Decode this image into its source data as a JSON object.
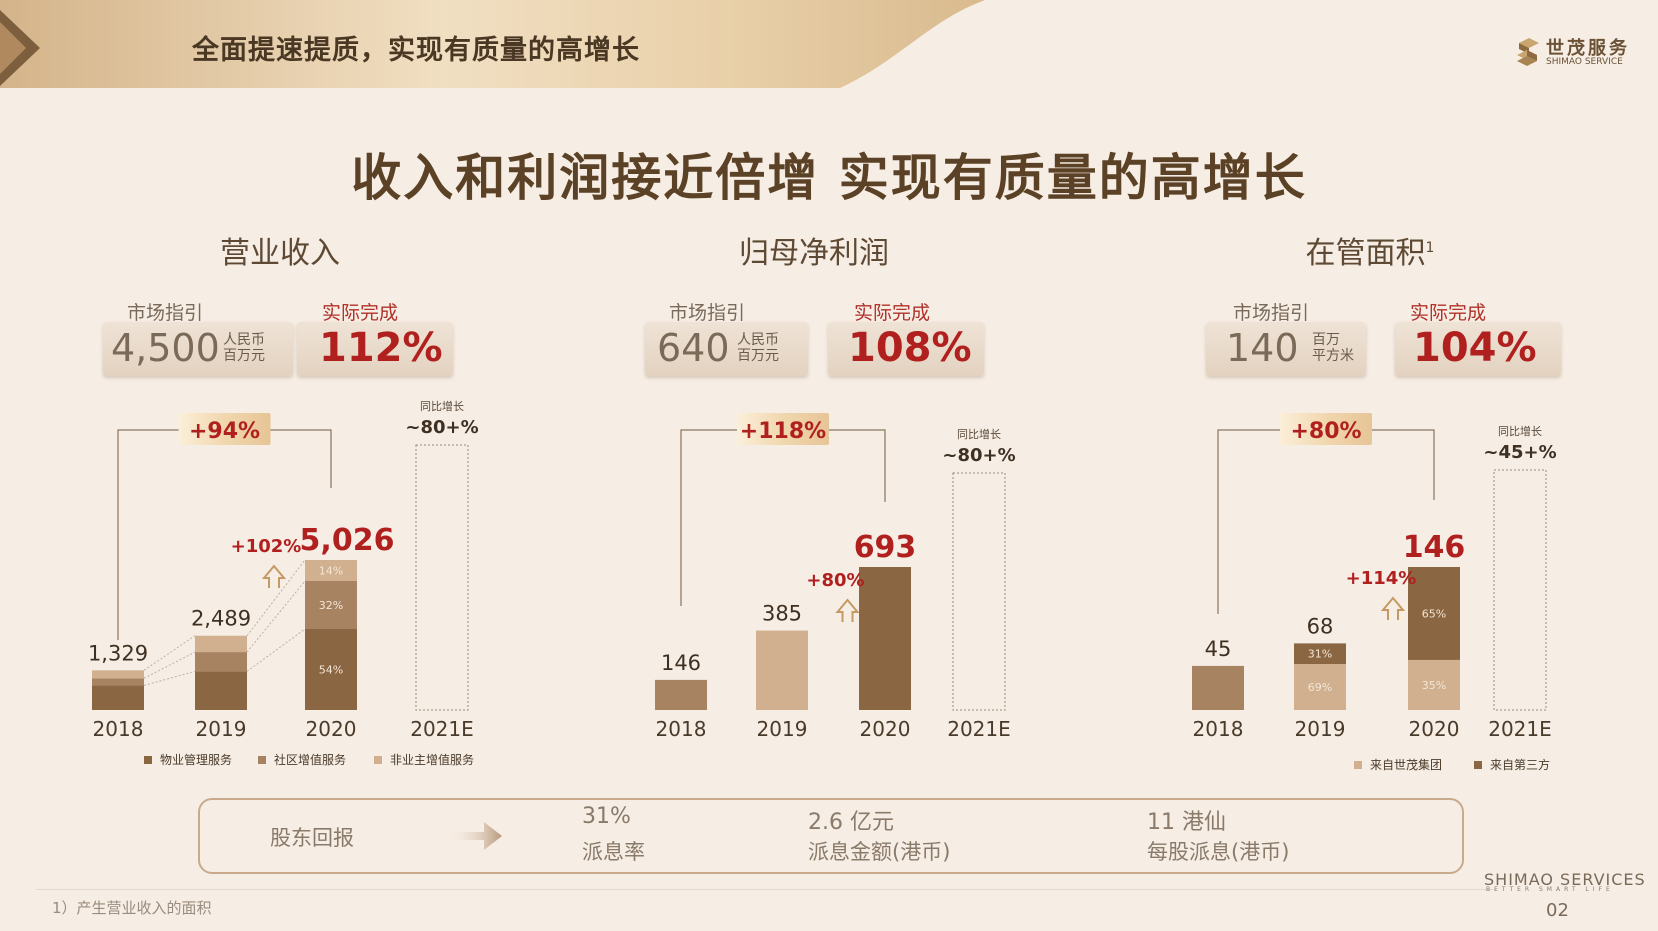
{
  "header": {
    "title": "全面提速提质，实现有质量的高增长",
    "logo_cn": "世茂服务",
    "logo_en": "SHIMAO SERVICE"
  },
  "main_title": "收入和利润接近倍增   实现有质量的高增长",
  "colors": {
    "dark": "#8b6642",
    "mid": "#a78361",
    "light": "#d0b08e",
    "red": "#b0201e",
    "bg": "#f6ede4"
  },
  "sections": [
    {
      "title": "营业收入",
      "title_sup": "",
      "guide_label": "市场指引",
      "guide_value": "4,500",
      "guide_unit_1": "人民币",
      "guide_unit_2": "百万元",
      "actual_label": "实际完成",
      "actual_value": "112%"
    },
    {
      "title": "归母净利润",
      "title_sup": "",
      "guide_label": "市场指引",
      "guide_value": "640",
      "guide_unit_1": "人民币",
      "guide_unit_2": "百万元",
      "actual_label": "实际完成",
      "actual_value": "108%"
    },
    {
      "title": "在管面积",
      "title_sup": "1",
      "guide_label": "市场指引",
      "guide_value": "140",
      "guide_unit_1": "百万",
      "guide_unit_2": "平方米",
      "actual_label": "实际完成",
      "actual_value": "104%"
    }
  ],
  "chart_data": [
    {
      "type": "bar",
      "categories": [
        "2018",
        "2019",
        "2020",
        "2021E"
      ],
      "values": [
        1329,
        2489,
        5026,
        null
      ],
      "value_labels": [
        "1,329",
        "2,489",
        "5,026",
        ""
      ],
      "stacks_2020": [
        54,
        32,
        14
      ],
      "stack_labels_2020": [
        "54%",
        "32%",
        "14%"
      ],
      "legend": [
        "物业管理服务",
        "社区增值服务",
        "非业主增值服务"
      ],
      "growth_2018_2020": "+94%",
      "growth_2019_2020": "+102%",
      "forecast_caption": "同比增长",
      "forecast_value": "~80+%"
    },
    {
      "type": "bar",
      "categories": [
        "2018",
        "2019",
        "2020",
        "2021E"
      ],
      "values": [
        146,
        385,
        693,
        null
      ],
      "value_labels": [
        "146",
        "385",
        "693",
        ""
      ],
      "growth_2018_2020": "+118%",
      "growth_2019_2020": "+80%",
      "forecast_caption": "同比增长",
      "forecast_value": "~80+%"
    },
    {
      "type": "bar",
      "categories": [
        "2018",
        "2019",
        "2020",
        "2021E"
      ],
      "values": [
        45,
        68,
        146,
        null
      ],
      "value_labels": [
        "45",
        "68",
        "146",
        ""
      ],
      "stacks_2019": [
        69,
        31
      ],
      "stack_labels_2019": [
        "69%",
        "31%"
      ],
      "stacks_2020": [
        35,
        65
      ],
      "stack_labels_2020": [
        "35%",
        "65%"
      ],
      "legend": [
        "来自世茂集团",
        "来自第三方"
      ],
      "growth_2018_2020": "+80%",
      "growth_2019_2020": "+114%",
      "forecast_caption": "同比增长",
      "forecast_value": "~45+%"
    }
  ],
  "returns": {
    "label": "股东回报",
    "items": [
      {
        "value": "31%",
        "desc": "派息率"
      },
      {
        "value": "2.6 亿元",
        "desc": "派息金额(港币)"
      },
      {
        "value": "11 港仙",
        "desc": "每股派息(港币)"
      }
    ]
  },
  "footnote": "1）产生营业收入的面积",
  "brand_en": "SHIMAO SERVICES",
  "brand_sub": "BETTER SMART LIFE",
  "page_number": "02"
}
